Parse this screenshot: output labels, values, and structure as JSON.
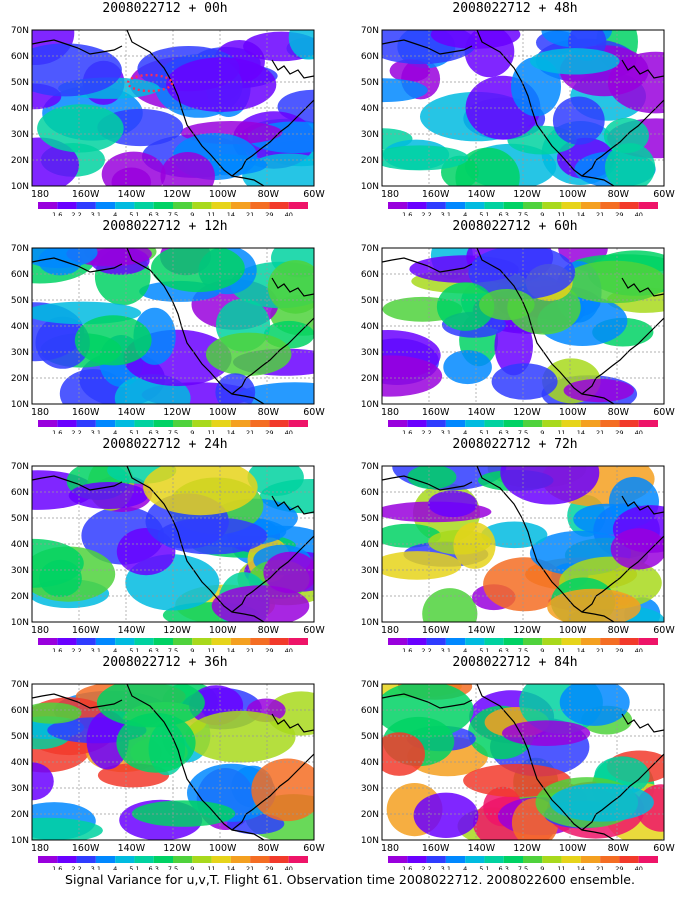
{
  "caption": "Signal Variance for u,v,T. Flight 61. Observation time 2008022712. 2008022600 ensemble.",
  "chart_data": {
    "type": "heatmap",
    "x_ticks": [
      "180",
      "160W",
      "140W",
      "120W",
      "100W",
      "80W",
      "60W"
    ],
    "y_ticks": [
      "10N",
      "20N",
      "30N",
      "40N",
      "50N",
      "60N",
      "70N"
    ],
    "colorbar_levels": [
      "1.6",
      "2.2",
      "3.1",
      "4",
      "5.1",
      "6.3",
      "7.5",
      "9",
      "11",
      "14",
      "21",
      "29",
      "40"
    ],
    "colorbar_colors": [
      "#9900dd",
      "#6a00ff",
      "#2f3cff",
      "#0088ff",
      "#00bbe0",
      "#00d2a0",
      "#00d264",
      "#4fd23c",
      "#a8d91c",
      "#e6d41a",
      "#f4a020",
      "#f46d23",
      "#f23a2b",
      "#ee1468"
    ],
    "panels": [
      {
        "title": "2008022712 + 00h"
      },
      {
        "title": "2008022712 + 48h"
      },
      {
        "title": "2008022712 + 12h"
      },
      {
        "title": "2008022712 + 60h"
      },
      {
        "title": "2008022712 + 24h"
      },
      {
        "title": "2008022712 + 72h"
      },
      {
        "title": "2008022712 + 36h"
      },
      {
        "title": "2008022712 + 84h"
      }
    ]
  }
}
